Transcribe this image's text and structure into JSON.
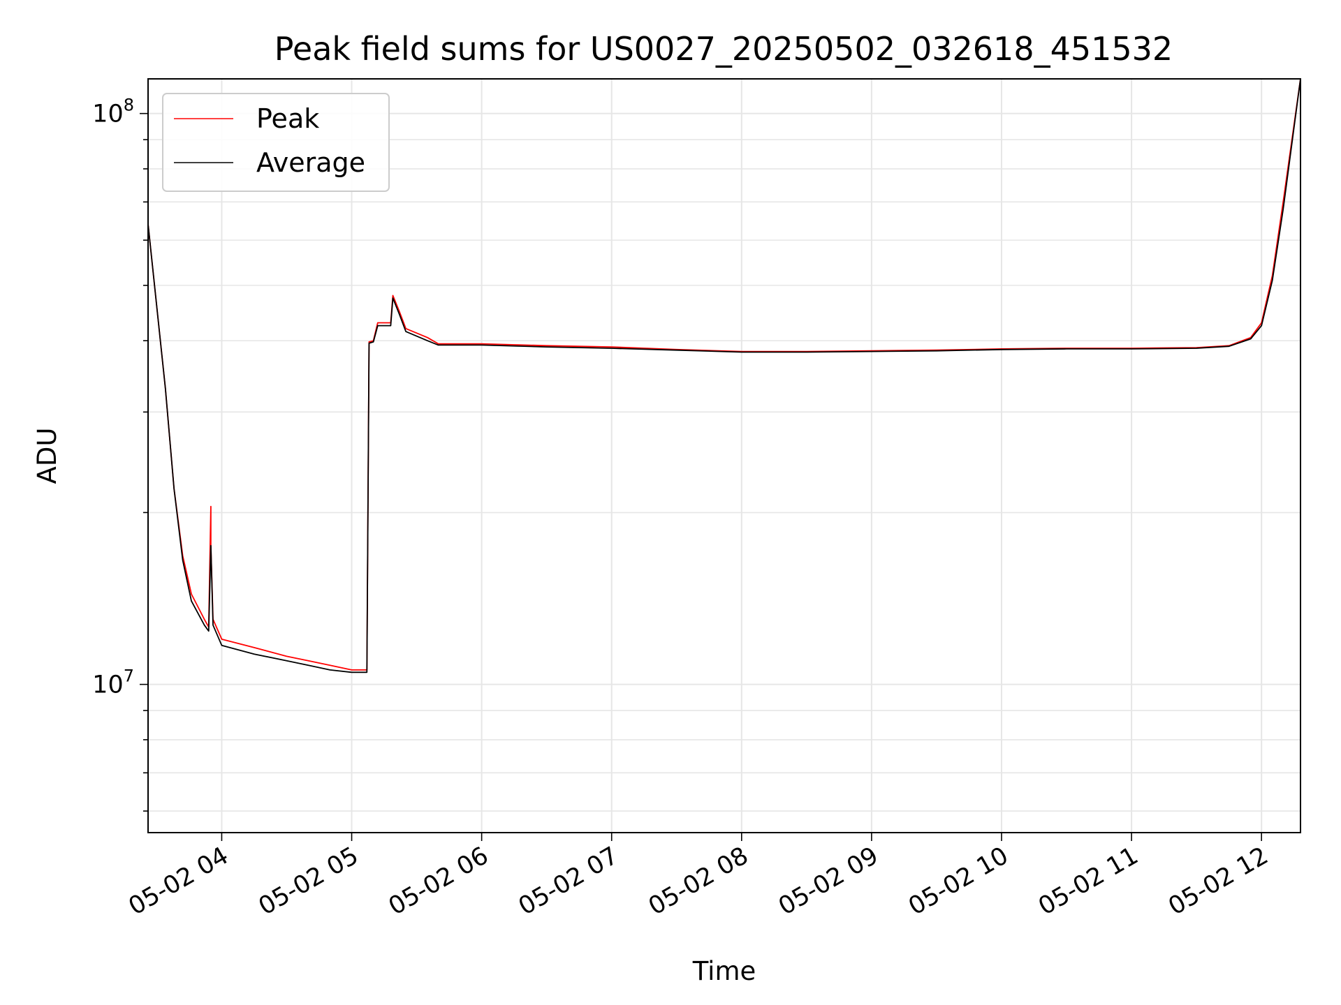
{
  "chart_data": {
    "type": "line",
    "title": "Peak field sums for US0027_20250502_032618_451532",
    "xlabel": "Time",
    "ylabel": "ADU",
    "y_scale": "log",
    "ylim": [
      5500000,
      115000000
    ],
    "xlim": [
      "2025-05-02 03:26",
      "2025-05-02 12:18"
    ],
    "grid": true,
    "legend_position": "upper-left",
    "x_tick_labels": [
      "05-02 04",
      "05-02 05",
      "05-02 06",
      "05-02 07",
      "05-02 08",
      "05-02 09",
      "05-02 10",
      "05-02 11",
      "05-02 12"
    ],
    "y_tick_labels": [
      {
        "base": "10",
        "exp": "7",
        "value": 10000000
      },
      {
        "base": "10",
        "exp": "8",
        "value": 100000000
      }
    ],
    "series": [
      {
        "name": "Peak",
        "color": "#ff0000",
        "x": [
          "2025-05-02 03:26",
          "2025-05-02 03:26",
          "2025-05-02 03:34",
          "2025-05-02 03:38",
          "2025-05-02 03:42",
          "2025-05-02 03:46",
          "2025-05-02 03:52",
          "2025-05-02 03:54",
          "2025-05-02 03:55",
          "2025-05-02 03:55",
          "2025-05-02 03:56",
          "2025-05-02 04:00",
          "2025-05-02 04:15",
          "2025-05-02 04:30",
          "2025-05-02 04:40",
          "2025-05-02 04:50",
          "2025-05-02 05:00",
          "2025-05-02 05:07",
          "2025-05-02 05:08",
          "2025-05-02 05:10",
          "2025-05-02 05:12",
          "2025-05-02 05:18",
          "2025-05-02 05:19",
          "2025-05-02 05:22",
          "2025-05-02 05:25",
          "2025-05-02 05:35",
          "2025-05-02 05:40",
          "2025-05-02 06:00",
          "2025-05-02 06:30",
          "2025-05-02 07:00",
          "2025-05-02 07:30",
          "2025-05-02 08:00",
          "2025-05-02 08:30",
          "2025-05-02 09:00",
          "2025-05-02 09:30",
          "2025-05-02 10:00",
          "2025-05-02 10:30",
          "2025-05-02 11:00",
          "2025-05-02 11:30",
          "2025-05-02 11:45",
          "2025-05-02 11:55",
          "2025-05-02 12:00",
          "2025-05-02 12:05",
          "2025-05-02 12:10",
          "2025-05-02 12:18"
        ],
        "y": [
          100000000,
          64000000,
          33000000,
          22000000,
          16800000,
          14400000,
          13000000,
          12600000,
          20500000,
          17500000,
          13000000,
          12000000,
          11600000,
          11200000,
          11000000,
          10800000,
          10600000,
          10600000,
          39800000,
          40000000,
          43000000,
          43000000,
          48000000,
          45000000,
          42000000,
          40500000,
          39500000,
          39500000,
          39200000,
          39000000,
          38600000,
          38300000,
          38300000,
          38400000,
          38500000,
          38700000,
          38800000,
          38800000,
          38900000,
          39200000,
          40500000,
          43000000,
          52000000,
          70000000,
          115000000
        ]
      },
      {
        "name": "Average",
        "color": "#000000",
        "x": [
          "2025-05-02 03:26",
          "2025-05-02 03:34",
          "2025-05-02 03:38",
          "2025-05-02 03:42",
          "2025-05-02 03:46",
          "2025-05-02 03:52",
          "2025-05-02 03:54",
          "2025-05-02 03:55",
          "2025-05-02 03:55",
          "2025-05-02 03:56",
          "2025-05-02 04:00",
          "2025-05-02 04:15",
          "2025-05-02 04:30",
          "2025-05-02 04:40",
          "2025-05-02 04:50",
          "2025-05-02 05:00",
          "2025-05-02 05:07",
          "2025-05-02 05:08",
          "2025-05-02 05:10",
          "2025-05-02 05:12",
          "2025-05-02 05:18",
          "2025-05-02 05:19",
          "2025-05-02 05:22",
          "2025-05-02 05:25",
          "2025-05-02 05:35",
          "2025-05-02 05:40",
          "2025-05-02 06:00",
          "2025-05-02 06:30",
          "2025-05-02 07:00",
          "2025-05-02 07:30",
          "2025-05-02 08:00",
          "2025-05-02 08:30",
          "2025-05-02 09:00",
          "2025-05-02 09:30",
          "2025-05-02 10:00",
          "2025-05-02 10:30",
          "2025-05-02 11:00",
          "2025-05-02 11:30",
          "2025-05-02 11:45",
          "2025-05-02 11:55",
          "2025-05-02 12:00",
          "2025-05-02 12:05",
          "2025-05-02 12:10",
          "2025-05-02 12:18"
        ],
        "y": [
          64000000,
          33000000,
          22000000,
          16500000,
          14000000,
          12700000,
          12400000,
          17500000,
          17500000,
          12700000,
          11700000,
          11300000,
          11000000,
          10800000,
          10600000,
          10500000,
          10500000,
          39600000,
          39800000,
          42500000,
          42500000,
          47500000,
          44500000,
          41500000,
          40000000,
          39300000,
          39300000,
          39000000,
          38800000,
          38500000,
          38200000,
          38200000,
          38300000,
          38400000,
          38600000,
          38700000,
          38700000,
          38800000,
          39100000,
          40300000,
          42500000,
          51000000,
          68000000,
          115000000
        ]
      }
    ]
  }
}
